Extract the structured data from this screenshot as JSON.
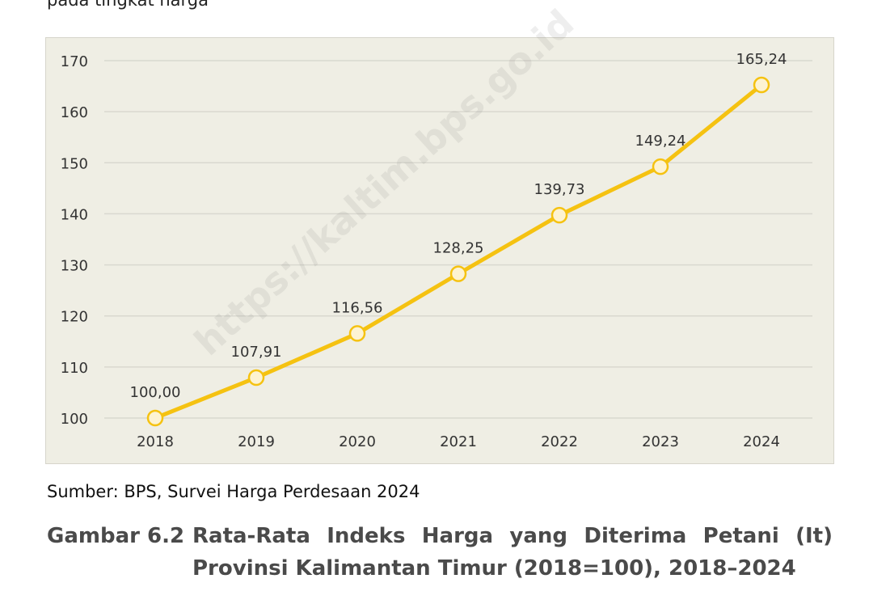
{
  "page": {
    "top_text": "pada tingkat harga",
    "source_note": "Sumber: BPS, Survei Harga Perdesaan 2024",
    "caption_label": "Gambar 6.2",
    "caption_line1": "Rata-Rata Indeks Harga yang Diterima Petani (It)",
    "caption_line2": "Provinsi Kalimantan Timur (2018=100), 2018–2024",
    "watermark": "https://kaltim.bps.go.id"
  },
  "colors": {
    "line": "#f5c211",
    "marker_fill": "#fdf3d2",
    "marker_stroke": "#f5c211",
    "grid": "#d9d8cf",
    "plot_bg": "#efeee4",
    "text": "#333333"
  },
  "chart_data": {
    "type": "line",
    "title": "",
    "xlabel": "",
    "ylabel": "",
    "categories": [
      "2018",
      "2019",
      "2020",
      "2021",
      "2022",
      "2023",
      "2024"
    ],
    "series": [
      {
        "values": [
          100.0,
          107.91,
          116.56,
          128.25,
          139.73,
          149.24,
          165.24
        ]
      }
    ],
    "data_labels": [
      "100,00",
      "107,91",
      "116,56",
      "128,25",
      "139,73",
      "149,24",
      "165,24"
    ],
    "ylim": [
      100,
      170
    ],
    "yticks": [
      100,
      110,
      120,
      130,
      140,
      150,
      160,
      170
    ],
    "grid": true,
    "legend": "none"
  }
}
